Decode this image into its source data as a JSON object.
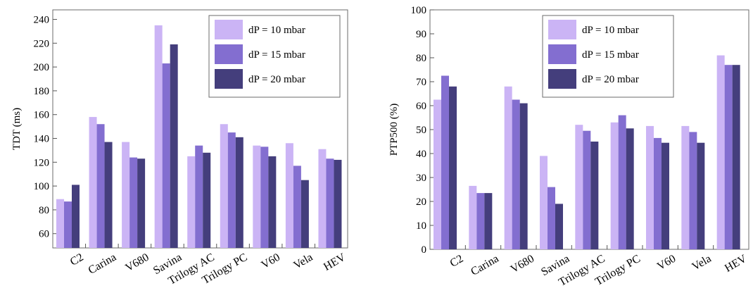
{
  "colors": {
    "series": [
      "#cbb4f5",
      "#836ed0",
      "#443e7c"
    ],
    "axis": "#555555",
    "frame": "#6b6b6b"
  },
  "chart_data": [
    {
      "type": "bar",
      "ylabel": "TDT (ms)",
      "ylim": [
        48,
        248
      ],
      "yticks": [
        60,
        80,
        100,
        120,
        140,
        160,
        180,
        200,
        220,
        240
      ],
      "categories": [
        "C2",
        "Carina",
        "V680",
        "Savina",
        "Trilogy AC",
        "Trilogy PC",
        "V60",
        "Vela",
        "HEV"
      ],
      "series": [
        {
          "name": "dP = 10 mbar",
          "values": [
            89,
            158,
            137,
            235,
            125,
            152,
            134,
            136,
            131
          ]
        },
        {
          "name": "dP = 15 mbar",
          "values": [
            87,
            152,
            124,
            203,
            134,
            145,
            133,
            117,
            123
          ]
        },
        {
          "name": "dP = 20 mbar",
          "values": [
            101,
            137,
            123,
            219,
            128,
            141,
            125,
            105,
            122
          ]
        }
      ],
      "legend": "top-right"
    },
    {
      "type": "bar",
      "ylabel": "PTP500 (%)",
      "ylim": [
        0,
        100
      ],
      "yticks": [
        0,
        10,
        20,
        30,
        40,
        50,
        60,
        70,
        80,
        90,
        100
      ],
      "categories": [
        "C2",
        "Carina",
        "V680",
        "Savina",
        "Trilogy AC",
        "Trilogy PC",
        "V60",
        "Vela",
        "HEV"
      ],
      "series": [
        {
          "name": "dP = 10 mbar",
          "values": [
            62.5,
            26.5,
            68,
            39,
            52,
            53,
            51.5,
            51.5,
            81
          ]
        },
        {
          "name": "dP = 15 mbar",
          "values": [
            72.5,
            23.5,
            62.5,
            26,
            49.5,
            56,
            46.5,
            49,
            77
          ]
        },
        {
          "name": "dP = 20 mbar",
          "values": [
            68,
            23.5,
            61,
            19,
            45,
            50.5,
            44.5,
            44.5,
            77
          ]
        }
      ],
      "legend": "top-right"
    }
  ]
}
